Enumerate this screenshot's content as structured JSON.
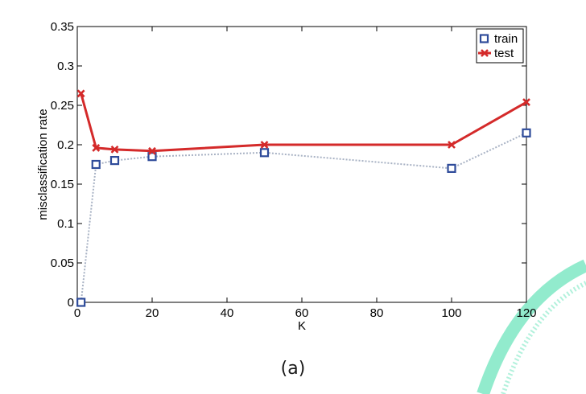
{
  "caption": "(a)",
  "colors": {
    "train": "#2e4b9a",
    "train_line": "#a8b2c4",
    "test": "#d42a2a",
    "decoration": "#7fe8c4"
  },
  "chart_data": {
    "type": "line",
    "title": "",
    "xlabel": "K",
    "ylabel": "misclassification rate",
    "xlim": [
      0,
      120
    ],
    "ylim": [
      0,
      0.35
    ],
    "xticks": [
      "0",
      "20",
      "40",
      "60",
      "80",
      "100",
      "120"
    ],
    "yticks": [
      "0",
      "0.05",
      "0.1",
      "0.15",
      "0.2",
      "0.25",
      "0.3",
      "0.35"
    ],
    "legend_position": "top-right",
    "grid": false,
    "series": [
      {
        "name": "train",
        "marker": "square",
        "line_style": "dotted",
        "x": [
          1,
          5,
          10,
          20,
          50,
          100,
          120
        ],
        "y": [
          0.0,
          0.175,
          0.18,
          0.185,
          0.19,
          0.17,
          0.215
        ]
      },
      {
        "name": "test",
        "marker": "x",
        "line_style": "solid",
        "x": [
          1,
          5,
          10,
          20,
          50,
          100,
          120
        ],
        "y": [
          0.265,
          0.196,
          0.194,
          0.192,
          0.2,
          0.2,
          0.254
        ]
      }
    ]
  }
}
